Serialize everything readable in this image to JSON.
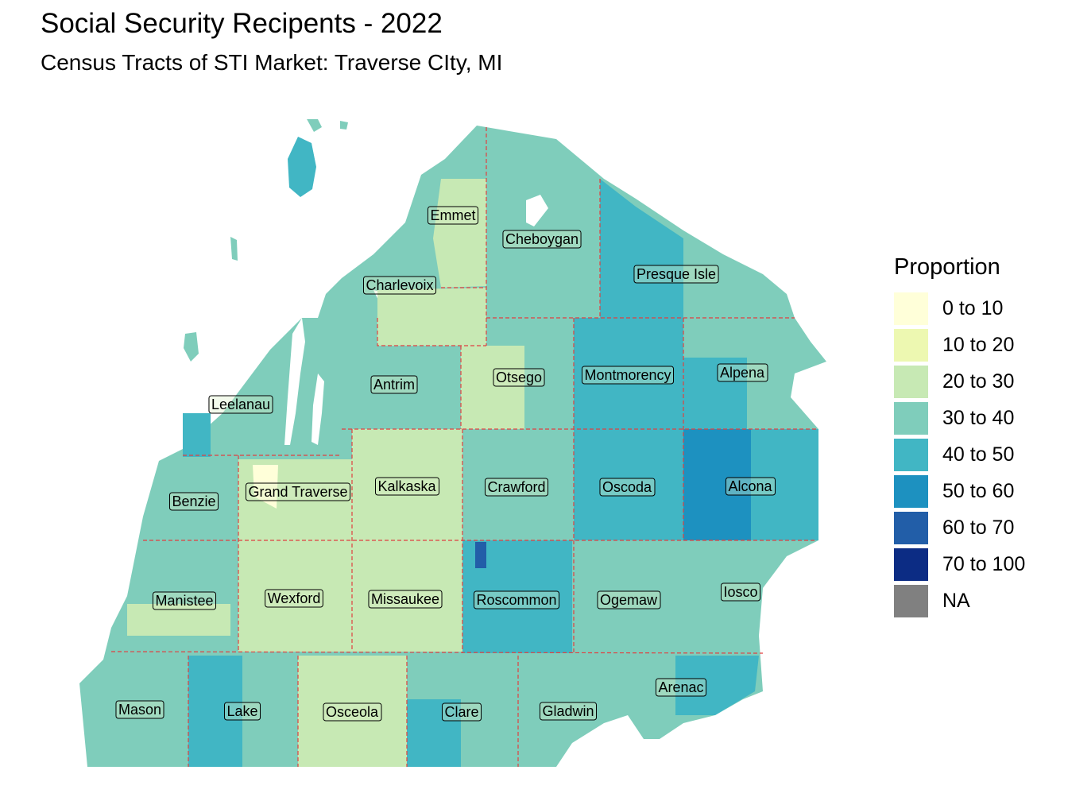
{
  "header": {
    "title": "Social Security Recipents - 2022",
    "subtitle": "Census Tracts of STI Market: Traverse CIty, MI"
  },
  "legend": {
    "title": "Proportion",
    "items": [
      {
        "label": "0 to 10",
        "color": "#ffffd9"
      },
      {
        "label": "10 to 20",
        "color": "#edf8b1"
      },
      {
        "label": "20 to 30",
        "color": "#c7e9b4"
      },
      {
        "label": "30 to 40",
        "color": "#7fcdbb"
      },
      {
        "label": "40 to 50",
        "color": "#41b6c4"
      },
      {
        "label": "50 to 60",
        "color": "#1d91c0"
      },
      {
        "label": "60 to 70",
        "color": "#225ea8"
      },
      {
        "label": "70 to 100",
        "color": "#0c2c84"
      },
      {
        "label": "NA",
        "color": "#808080"
      }
    ]
  },
  "counties": [
    {
      "name": "Emmet",
      "bin": "20 to 30"
    },
    {
      "name": "Cheboygan",
      "bin": "30 to 40"
    },
    {
      "name": "Presque Isle",
      "bin": "40 to 50"
    },
    {
      "name": "Charlevoix",
      "bin": "30 to 40"
    },
    {
      "name": "Leelanau",
      "bin": "30 to 40"
    },
    {
      "name": "Antrim",
      "bin": "30 to 40"
    },
    {
      "name": "Otsego",
      "bin": "20 to 30"
    },
    {
      "name": "Montmorency",
      "bin": "40 to 50"
    },
    {
      "name": "Alpena",
      "bin": "30 to 40"
    },
    {
      "name": "Benzie",
      "bin": "30 to 40"
    },
    {
      "name": "Grand Traverse",
      "bin": "20 to 30"
    },
    {
      "name": "Kalkaska",
      "bin": "20 to 30"
    },
    {
      "name": "Crawford",
      "bin": "30 to 40"
    },
    {
      "name": "Oscoda",
      "bin": "40 to 50"
    },
    {
      "name": "Alcona",
      "bin": "50 to 60"
    },
    {
      "name": "Manistee",
      "bin": "30 to 40"
    },
    {
      "name": "Wexford",
      "bin": "20 to 30"
    },
    {
      "name": "Missaukee",
      "bin": "20 to 30"
    },
    {
      "name": "Roscommon",
      "bin": "40 to 50"
    },
    {
      "name": "Ogemaw",
      "bin": "30 to 40"
    },
    {
      "name": "Iosco",
      "bin": "30 to 40"
    },
    {
      "name": "Arenac",
      "bin": "30 to 40"
    },
    {
      "name": "Mason",
      "bin": "30 to 40"
    },
    {
      "name": "Lake",
      "bin": "40 to 50"
    },
    {
      "name": "Osceola",
      "bin": "20 to 30"
    },
    {
      "name": "Clare",
      "bin": "30 to 40"
    },
    {
      "name": "Gladwin",
      "bin": "30 to 40"
    }
  ]
}
